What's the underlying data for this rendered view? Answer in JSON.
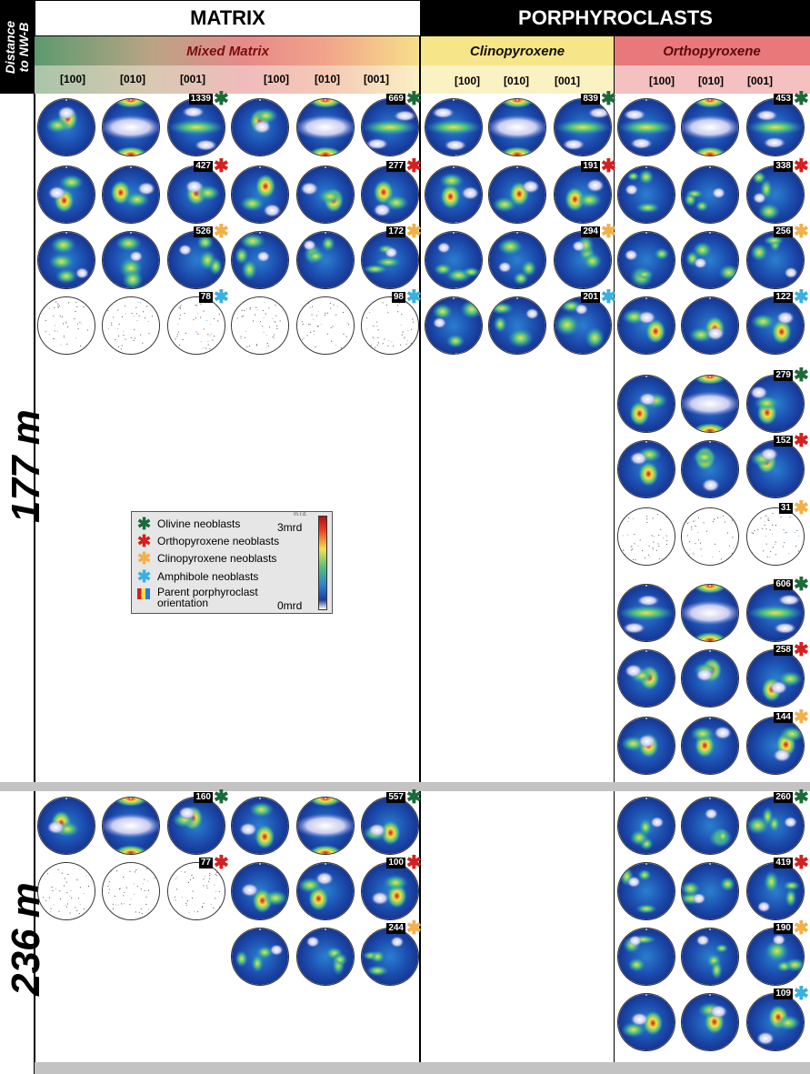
{
  "headers": {
    "distance_label_1": "Distance",
    "distance_label_2": "to NW-B",
    "matrix": "MATRIX",
    "porphyroclasts": "PORPHYROCLASTS",
    "mixed_matrix": "Mixed Matrix",
    "clinopyroxene": "Clinopyroxene",
    "orthopyroxene": "Orthopyroxene"
  },
  "axes": [
    "[100]",
    "[010]",
    "[001]",
    "[100]",
    "[010]",
    "[001]",
    "[100]",
    "[010]",
    "[001]",
    "[100]",
    "[010]",
    "[001]"
  ],
  "distances": [
    "177 m",
    "236 m"
  ],
  "legend": {
    "items": [
      {
        "label": "Olivine neoblasts",
        "color": "#1b6b3a"
      },
      {
        "label": "Orthopyroxene neoblasts",
        "color": "#d42020"
      },
      {
        "label": "Clinopyroxene neoblasts",
        "color": "#f2b04a"
      },
      {
        "label": "Amphibole neoblasts",
        "color": "#3ab0e0"
      }
    ],
    "parent_1": "Parent porphyroclast",
    "parent_2": "orientation",
    "scale_max": "3mrd",
    "scale_min": "0mrd",
    "scale_unit": "m.r.d."
  },
  "stereonet_counts": {
    "row1": [
      "1339",
      "669",
      "839",
      "453"
    ],
    "row2": [
      "427",
      "277",
      "191",
      "338"
    ],
    "row3": [
      "526",
      "172",
      "294",
      "256"
    ],
    "row4": [
      "78",
      "98",
      "201",
      "122"
    ],
    "opx_group2": [
      "279",
      "152",
      "31"
    ],
    "opx_group3": [
      "606",
      "258",
      "144"
    ],
    "section236_matrix": [
      "160",
      "557",
      "77",
      "100",
      "244"
    ],
    "section236_opx": [
      "260",
      "419",
      "190",
      "109"
    ]
  },
  "colors": {
    "olivine": "#1b6b3a",
    "orthopyroxene": "#d42020",
    "clinopyroxene": "#f2b04a",
    "amphibole": "#3ab0e0",
    "cpx_header": "#f7e58a",
    "opx_header": "#e8787a"
  }
}
